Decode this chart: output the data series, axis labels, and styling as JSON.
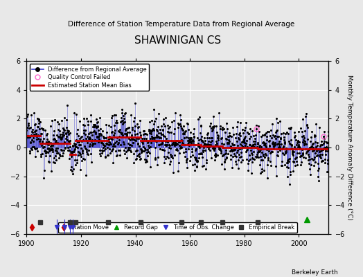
{
  "title": "SHAWINIGAN CS",
  "subtitle": "Difference of Station Temperature Data from Regional Average",
  "ylabel": "Monthly Temperature Anomaly Difference (°C)",
  "xlabel_credit": "Berkeley Earth",
  "xlim": [
    1900,
    2011
  ],
  "ylim": [
    -6,
    6
  ],
  "yticks": [
    -6,
    -4,
    -2,
    0,
    2,
    4,
    6
  ],
  "xticks": [
    1900,
    1920,
    1940,
    1960,
    1980,
    2000
  ],
  "bg_color": "#e8e8e8",
  "plot_bg_color": "#e8e8e8",
  "line_color": "#3333cc",
  "dot_color": "#000000",
  "bias_color": "#cc0000",
  "qc_color": "#ff66cc",
  "station_move_color": "#cc0000",
  "record_gap_color": "#009900",
  "tobs_color": "#3333cc",
  "empirical_color": "#333333",
  "empirical_breaks": [
    1905,
    1916,
    1918,
    1930,
    1942,
    1957,
    1964,
    1972,
    1985
  ],
  "station_moves": [
    1902
  ],
  "record_gaps": [
    2003
  ],
  "tobs_changes": [
    1911,
    1914,
    1916,
    1917
  ],
  "qc_failed_years": [
    1984.5,
    2009
  ],
  "bias_segments": [
    {
      "x": [
        1900,
        1905
      ],
      "y": [
        0.8,
        0.8
      ]
    },
    {
      "x": [
        1905,
        1916
      ],
      "y": [
        0.3,
        0.3
      ]
    },
    {
      "x": [
        1916,
        1918
      ],
      "y": [
        -0.5,
        -0.5
      ]
    },
    {
      "x": [
        1918,
        1930
      ],
      "y": [
        0.5,
        0.5
      ]
    },
    {
      "x": [
        1930,
        1942
      ],
      "y": [
        0.7,
        0.7
      ]
    },
    {
      "x": [
        1942,
        1957
      ],
      "y": [
        0.5,
        0.5
      ]
    },
    {
      "x": [
        1957,
        1964
      ],
      "y": [
        0.2,
        0.2
      ]
    },
    {
      "x": [
        1964,
        1972
      ],
      "y": [
        0.1,
        0.1
      ]
    },
    {
      "x": [
        1972,
        1985
      ],
      "y": [
        0.0,
        0.0
      ]
    },
    {
      "x": [
        1985,
        2011
      ],
      "y": [
        -0.1,
        -0.1
      ]
    }
  ],
  "seed": 42
}
